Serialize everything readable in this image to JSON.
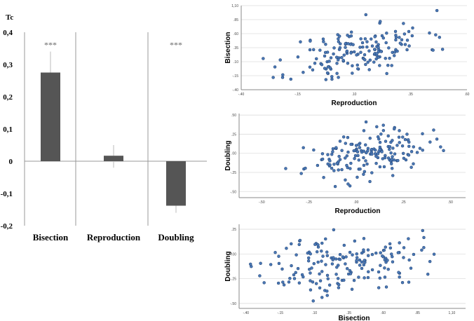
{
  "chart_data": [
    {
      "type": "bar",
      "ylabel": "Tc",
      "categories": [
        "Bisection",
        "Reproduction",
        "Doubling"
      ],
      "values": [
        0.275,
        0.017,
        -0.138
      ],
      "error_upper": [
        0.34,
        0.05,
        null
      ],
      "error_lower": [
        null,
        -0.02,
        -0.16
      ],
      "significance": [
        "***",
        "",
        "***"
      ],
      "ylim": [
        -0.2,
        0.4
      ],
      "yticks": [
        "0,4",
        "0,3",
        "0,2",
        "0,1",
        "0",
        "-0,1",
        "-0,2"
      ],
      "colors": {
        "bar": "#555555",
        "axis": "#999999"
      }
    },
    {
      "type": "scatter",
      "xlabel": "Reproduction",
      "ylabel": "Bisection",
      "xticks": [
        "-.40",
        "-.15",
        ".10",
        ".35",
        ".60"
      ],
      "yticks": [
        "1,10",
        ".85",
        ".60",
        ".35",
        ".10",
        "-.15",
        "-.40"
      ],
      "xlim": [
        -0.4,
        0.6
      ],
      "ylim": [
        -0.4,
        1.1
      ],
      "mean_x": 0.12,
      "sd_x": 0.15,
      "mean_y": 0.28,
      "sd_y": 0.26,
      "r": 0.45,
      "n": 170,
      "seed": 11,
      "colors": {
        "point": "#4a78b5",
        "stroke": "#1f3f70",
        "grid": "#dddddd"
      }
    },
    {
      "type": "scatter",
      "xlabel": "Reproduction",
      "ylabel": "Doubling",
      "xticks": [
        "-.50",
        "-.25",
        ".00",
        ".25",
        ".50"
      ],
      "yticks": [
        ".50",
        ".25",
        ".00",
        "-.25",
        "-.50"
      ],
      "xlim": [
        -0.62,
        0.58
      ],
      "ylim": [
        -0.58,
        0.52
      ],
      "mean_x": 0.06,
      "sd_x": 0.16,
      "mean_y": -0.02,
      "sd_y": 0.15,
      "r": 0.35,
      "n": 170,
      "seed": 23,
      "colors": {
        "point": "#4a78b5",
        "stroke": "#1f3f70",
        "grid": "#dddddd"
      }
    },
    {
      "type": "scatter",
      "xlabel": "Bisection",
      "ylabel": "Doubling",
      "xticks": [
        "-.40",
        "-.15",
        ".10",
        ".35",
        ".60",
        ".85",
        "1,10"
      ],
      "yticks": [
        ".25",
        ".00",
        "-.25",
        "-.50"
      ],
      "xlim": [
        -0.45,
        1.2
      ],
      "ylim": [
        -0.55,
        0.3
      ],
      "mean_x": 0.3,
      "sd_x": 0.28,
      "mean_y": -0.1,
      "sd_y": 0.15,
      "r": 0.25,
      "n": 170,
      "seed": 37,
      "colors": {
        "point": "#4a78b5",
        "stroke": "#1f3f70",
        "grid": "#dddddd"
      }
    }
  ]
}
